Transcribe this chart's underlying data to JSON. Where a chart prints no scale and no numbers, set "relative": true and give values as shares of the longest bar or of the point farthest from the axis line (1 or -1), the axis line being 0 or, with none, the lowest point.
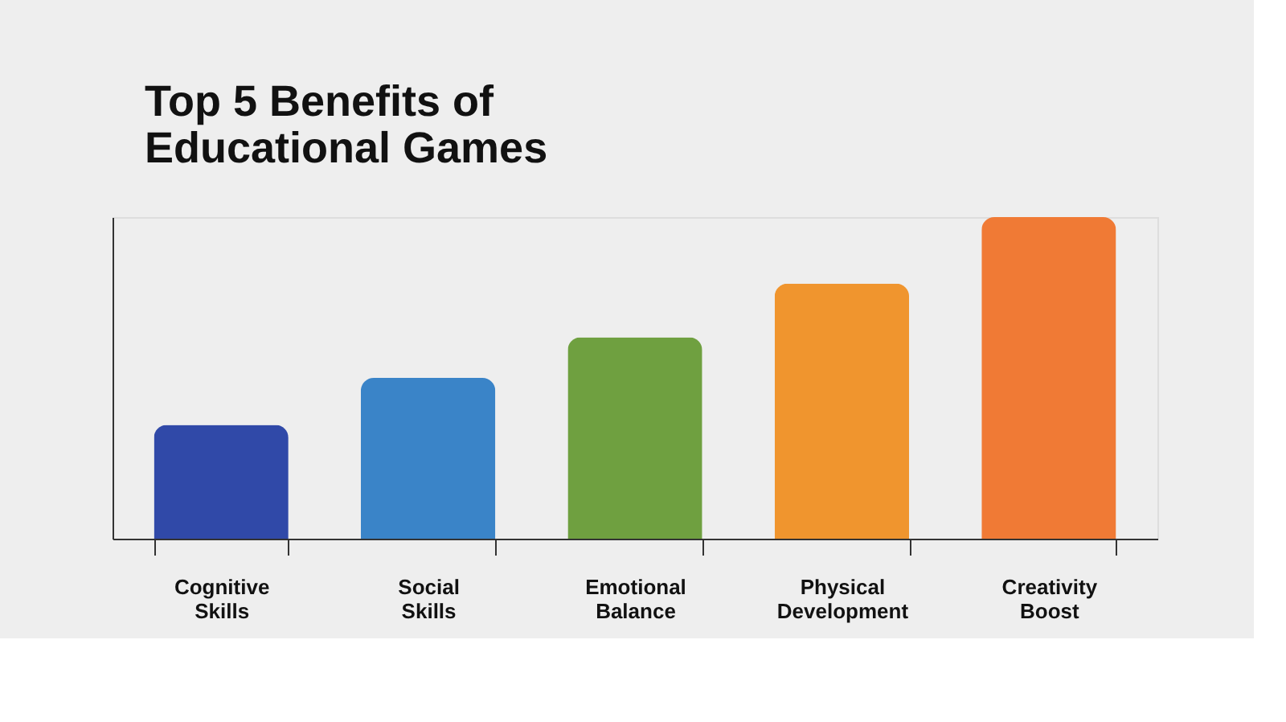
{
  "chart_data": {
    "type": "bar",
    "title": "Top 5 Benefits of Educational Games",
    "relative": true,
    "categories": [
      "Cognitive Skills",
      "Social Skills",
      "Emotional Balance",
      "Physical Development",
      "Creativity Boost"
    ],
    "values": [
      0.354,
      0.5,
      0.626,
      0.793,
      1
    ],
    "colors": [
      "#3049a8",
      "#3a84c8",
      "#6fa040",
      "#f0952e",
      "#f07a35"
    ],
    "grid": false
  }
}
